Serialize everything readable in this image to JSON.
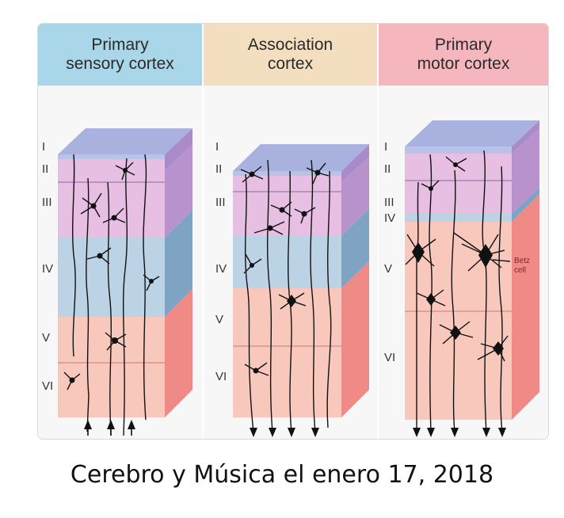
{
  "panels": [
    {
      "title_line1": "Primary",
      "title_line2": "sensory cortex",
      "header_color": "#a9d6e8"
    },
    {
      "title_line1": "Association",
      "title_line2": "cortex",
      "header_color": "#f3dfc0"
    },
    {
      "title_line1": "Primary",
      "title_line2": "motor cortex",
      "header_color": "#f6b6bd"
    }
  ],
  "sensory_layers": [
    "I",
    "II",
    "III",
    "IV",
    "V",
    "VI"
  ],
  "association_layers": [
    "I",
    "II",
    "III",
    "IV",
    "V",
    "VI"
  ],
  "motor_layers": [
    "I",
    "II",
    "III",
    "IV",
    "V",
    "VI"
  ],
  "betz_label_line1": "Betz",
  "betz_label_line2": "cell",
  "caption": "Cerebro y Música el enero 17, 2018",
  "colors": {
    "layer_I": "#b9c3e8",
    "layer_II_III": "#e6bfe3",
    "layer_IV": "#bcd3e6",
    "layer_V_VI": "#f8c8bd",
    "neuron": "#111111"
  }
}
